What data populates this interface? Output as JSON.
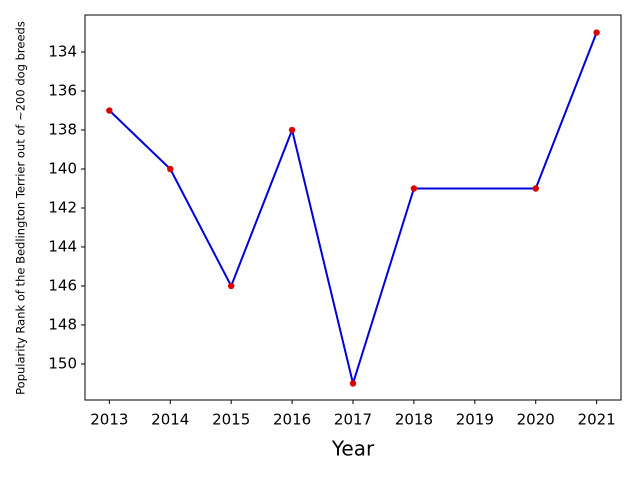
{
  "chart_data": {
    "type": "line",
    "x_label": "Year",
    "y_label": "Popularity Rank of the Bedlington Terrier out of ~200 dog breeds",
    "x": [
      2013,
      2014,
      2015,
      2016,
      2017,
      2018,
      2020,
      2021
    ],
    "values": [
      137,
      140,
      146,
      138,
      151,
      141,
      141,
      133
    ],
    "color": "#0000dd",
    "marker_color": "#dd0000",
    "xlim": [
      2012.6,
      2021.4
    ],
    "xticks": [
      2013,
      2014,
      2015,
      2016,
      2017,
      2018,
      2019,
      2020,
      2021
    ],
    "ylim": [
      151.85,
      132.1
    ],
    "yticks": [
      134,
      136,
      138,
      140,
      142,
      144,
      146,
      148,
      150
    ],
    "grid": false
  }
}
